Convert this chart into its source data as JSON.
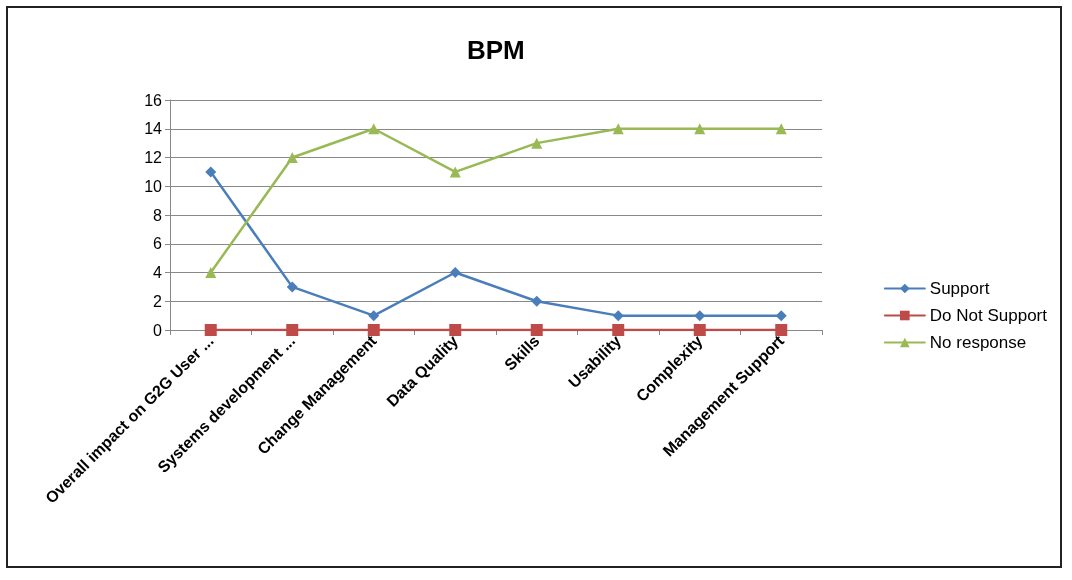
{
  "chart_data": {
    "type": "line",
    "title": "BPM",
    "categories": [
      "Overall impact on G2G User ...",
      "Systems development ...",
      "Change Management",
      "Data Quality",
      "Skills",
      "Usability",
      "Complexity",
      "Management Support"
    ],
    "series": [
      {
        "name": "Support",
        "color": "#4a7ebb",
        "marker": "diamond",
        "values": [
          11,
          3,
          1,
          4,
          2,
          1,
          1,
          1
        ]
      },
      {
        "name": "Do Not Support",
        "color": "#be4b48",
        "marker": "square",
        "values": [
          0,
          0,
          0,
          0,
          0,
          0,
          0,
          0
        ]
      },
      {
        "name": "No response",
        "color": "#98b954",
        "marker": "triangle",
        "values": [
          4,
          12,
          14,
          11,
          13,
          14,
          14,
          14
        ]
      }
    ],
    "ylim": [
      0,
      16
    ],
    "yticks": [
      0,
      2,
      4,
      6,
      8,
      10,
      12,
      14,
      16
    ],
    "grid": "y",
    "legend": "right",
    "line_style": "solid"
  }
}
